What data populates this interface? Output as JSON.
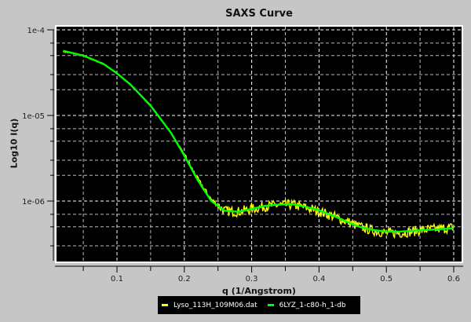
{
  "chart_data": {
    "type": "line",
    "title": "SAXS Curve",
    "xlabel": "q (1/Angstrom)",
    "ylabel": "Log10 I(q)",
    "xscale": "linear",
    "yscale": "log",
    "xlim": [
      0.015,
      0.61
    ],
    "ylim": [
      1.8e-07,
      9.5e-05
    ],
    "xticks": [
      0.1,
      0.2,
      0.3,
      0.4,
      0.5,
      0.6
    ],
    "xtick_labels": [
      "0.1",
      "0.2",
      "0.3",
      "0.4",
      "0.5",
      "0.6"
    ],
    "yticks": [
      1e-06,
      1e-05
    ],
    "ytick_labels": [
      "1e-06",
      "1e-05"
    ],
    "grid": true,
    "background": "#000000",
    "legend_position": "bottom-center",
    "series": [
      {
        "name": "Lyso_113H_109M06.dat",
        "color": "#ffff00",
        "noisy": true,
        "x": [
          0.02,
          0.05,
          0.08,
          0.1,
          0.12,
          0.15,
          0.18,
          0.2,
          0.22,
          0.24,
          0.26,
          0.28,
          0.3,
          0.32,
          0.34,
          0.36,
          0.38,
          0.4,
          0.42,
          0.44,
          0.46,
          0.48,
          0.5,
          0.52,
          0.54,
          0.56,
          0.58,
          0.6
        ],
        "y": [
          5.6e-05,
          5e-05,
          4e-05,
          3.1e-05,
          2.3e-05,
          1.3e-05,
          6.3e-06,
          3.5e-06,
          1.8e-06,
          1.05e-06,
          7.8e-07,
          7.6e-07,
          8.2e-07,
          8.8e-07,
          9.1e-07,
          9.2e-07,
          8.5e-07,
          7.7e-07,
          6.8e-07,
          5.9e-07,
          5.1e-07,
          4.6e-07,
          4.3e-07,
          4.3e-07,
          4.5e-07,
          4.7e-07,
          4.8e-07,
          5e-07
        ]
      },
      {
        "name": "6LYZ_1-c80-h_1-db",
        "color": "#00ff00",
        "noisy": false,
        "x": [
          0.02,
          0.05,
          0.08,
          0.1,
          0.12,
          0.15,
          0.18,
          0.2,
          0.22,
          0.24,
          0.26,
          0.28,
          0.3,
          0.32,
          0.34,
          0.36,
          0.38,
          0.4,
          0.42,
          0.44,
          0.46,
          0.48,
          0.5,
          0.52,
          0.54,
          0.56,
          0.58,
          0.6
        ],
        "y": [
          5.7e-05,
          5e-05,
          4e-05,
          3.1e-05,
          2.3e-05,
          1.3e-05,
          6.3e-06,
          3.4e-06,
          1.75e-06,
          1e-06,
          7.7e-07,
          7.5e-07,
          8.1e-07,
          8.8e-07,
          9.1e-07,
          9.2e-07,
          8.6e-07,
          7.8e-07,
          6.8e-07,
          5.8e-07,
          5e-07,
          4.6e-07,
          4.4e-07,
          4.4e-07,
          4.5e-07,
          4.6e-07,
          4.7e-07,
          4.8e-07
        ]
      }
    ]
  },
  "legend": {
    "items": [
      {
        "label": "Lyso_113H_109M06.dat",
        "color": "#ffff00"
      },
      {
        "label": "6LYZ_1-c80-h_1-db",
        "color": "#00ff00"
      }
    ]
  }
}
